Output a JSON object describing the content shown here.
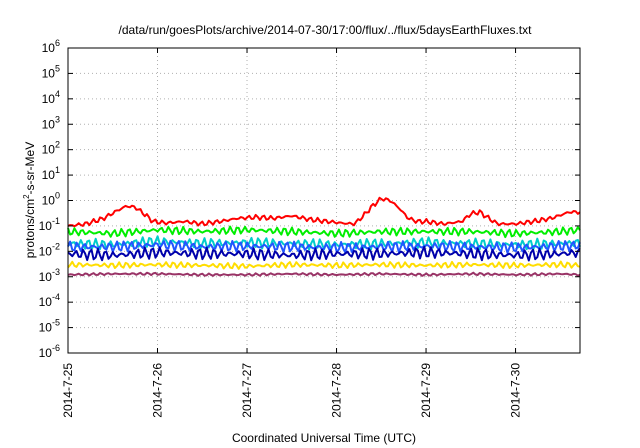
{
  "chart_data": {
    "type": "line",
    "title": "/data/run/goesPlots/archive/2014-07-30/17:00/flux/../flux/5daysEarthFluxes.txt",
    "xlabel": "Coordinated Universal Time (UTC)",
    "ylabel": {
      "before": "protons/cm",
      "sup": "2",
      "after": "-s-sr-MeV"
    },
    "x_unit": "days since 2014-07-25 00:00 UTC",
    "xlim": [
      0,
      5.72
    ],
    "x_ticks": [
      {
        "x": 0,
        "label": "2014-7-25"
      },
      {
        "x": 1,
        "label": "2014-7-26"
      },
      {
        "x": 2,
        "label": "2014-7-27"
      },
      {
        "x": 3,
        "label": "2014-7-28"
      },
      {
        "x": 4,
        "label": "2014-7-29"
      },
      {
        "x": 5,
        "label": "2014-7-30"
      }
    ],
    "y_scale": "log",
    "ylim": [
      1e-06,
      1000000.0
    ],
    "y_ticks": [
      {
        "exp": -6,
        "base": "10",
        "sup": "-6"
      },
      {
        "exp": -5,
        "base": "10",
        "sup": "-5"
      },
      {
        "exp": -4,
        "base": "10",
        "sup": "-4"
      },
      {
        "exp": -3,
        "base": "10",
        "sup": "-3"
      },
      {
        "exp": -2,
        "base": "10",
        "sup": "-2"
      },
      {
        "exp": -1,
        "base": "10",
        "sup": "-1"
      },
      {
        "exp": 0,
        "base": "10",
        "sup": "0"
      },
      {
        "exp": 1,
        "base": "10",
        "sup": "1"
      },
      {
        "exp": 2,
        "base": "10",
        "sup": "2"
      },
      {
        "exp": 3,
        "base": "10",
        "sup": "3"
      },
      {
        "exp": 4,
        "base": "10",
        "sup": "4"
      },
      {
        "exp": 5,
        "base": "10",
        "sup": "5"
      },
      {
        "exp": 6,
        "base": "10",
        "sup": "6"
      }
    ],
    "grid": true,
    "legend": "none",
    "series": [
      {
        "color": "#ff0000",
        "x": [
          0,
          0.2,
          0.4,
          0.55,
          0.65,
          0.75,
          0.85,
          0.95,
          1.1,
          1.3,
          1.5,
          1.7,
          1.9,
          2.1,
          2.3,
          2.5,
          2.7,
          2.9,
          3.05,
          3.2,
          3.3,
          3.4,
          3.5,
          3.6,
          3.7,
          3.8,
          3.9,
          4.0,
          4.2,
          4.4,
          4.5,
          4.6,
          4.7,
          4.8,
          5.0,
          5.2,
          5.4,
          5.6,
          5.72
        ],
        "y": [
          0.1,
          0.12,
          0.2,
          0.4,
          0.6,
          0.55,
          0.3,
          0.15,
          0.13,
          0.15,
          0.12,
          0.15,
          0.2,
          0.22,
          0.2,
          0.25,
          0.18,
          0.15,
          0.13,
          0.12,
          0.25,
          0.6,
          1.2,
          1.0,
          0.5,
          0.2,
          0.15,
          0.15,
          0.12,
          0.15,
          0.3,
          0.35,
          0.2,
          0.12,
          0.12,
          0.15,
          0.2,
          0.35,
          0.35
        ]
      },
      {
        "color": "#00ee00",
        "x": [
          0,
          0.5,
          1.0,
          1.5,
          2.0,
          2.5,
          3.0,
          3.5,
          4.0,
          4.5,
          5.0,
          5.5,
          5.72
        ],
        "y": [
          0.06,
          0.05,
          0.07,
          0.06,
          0.07,
          0.06,
          0.05,
          0.06,
          0.06,
          0.06,
          0.05,
          0.06,
          0.07
        ]
      },
      {
        "color": "#00cccc",
        "x": [
          0,
          0.5,
          1.0,
          1.5,
          2.0,
          2.5,
          3.0,
          3.5,
          4.0,
          4.5,
          5.0,
          5.5,
          5.72
        ],
        "y": [
          0.02,
          0.018,
          0.025,
          0.02,
          0.022,
          0.02,
          0.018,
          0.02,
          0.022,
          0.02,
          0.018,
          0.02,
          0.022
        ]
      },
      {
        "color": "#2255ff",
        "x": [
          0,
          0.5,
          1.0,
          1.5,
          2.0,
          2.5,
          3.0,
          3.5,
          4.0,
          4.5,
          5.0,
          5.5,
          5.72
        ],
        "y": [
          0.015,
          0.015,
          0.018,
          0.015,
          0.016,
          0.015,
          0.014,
          0.015,
          0.016,
          0.015,
          0.014,
          0.016,
          0.017
        ]
      },
      {
        "color": "#0000aa",
        "x": [
          0,
          0.5,
          1.0,
          1.5,
          2.0,
          2.5,
          3.0,
          3.5,
          4.0,
          4.5,
          5.0,
          5.5,
          5.72
        ],
        "y": [
          0.008,
          0.007,
          0.009,
          0.008,
          0.008,
          0.007,
          0.008,
          0.008,
          0.009,
          0.008,
          0.007,
          0.008,
          0.009
        ]
      },
      {
        "color": "#ffdd00",
        "x": [
          0,
          0.5,
          1.0,
          1.5,
          2.0,
          2.5,
          3.0,
          3.5,
          4.0,
          4.5,
          5.0,
          5.5,
          5.72
        ],
        "y": [
          0.003,
          0.0028,
          0.003,
          0.0028,
          0.0026,
          0.003,
          0.0028,
          0.003,
          0.0028,
          0.003,
          0.0028,
          0.003,
          0.0028
        ]
      },
      {
        "color": "#993366",
        "x": [
          0,
          0.5,
          1.0,
          1.5,
          2.0,
          2.5,
          3.0,
          3.5,
          4.0,
          4.5,
          5.0,
          5.5,
          5.72
        ],
        "y": [
          0.0012,
          0.0013,
          0.0013,
          0.0012,
          0.0012,
          0.0013,
          0.0012,
          0.0013,
          0.0012,
          0.0013,
          0.0012,
          0.0013,
          0.0012
        ]
      }
    ]
  }
}
